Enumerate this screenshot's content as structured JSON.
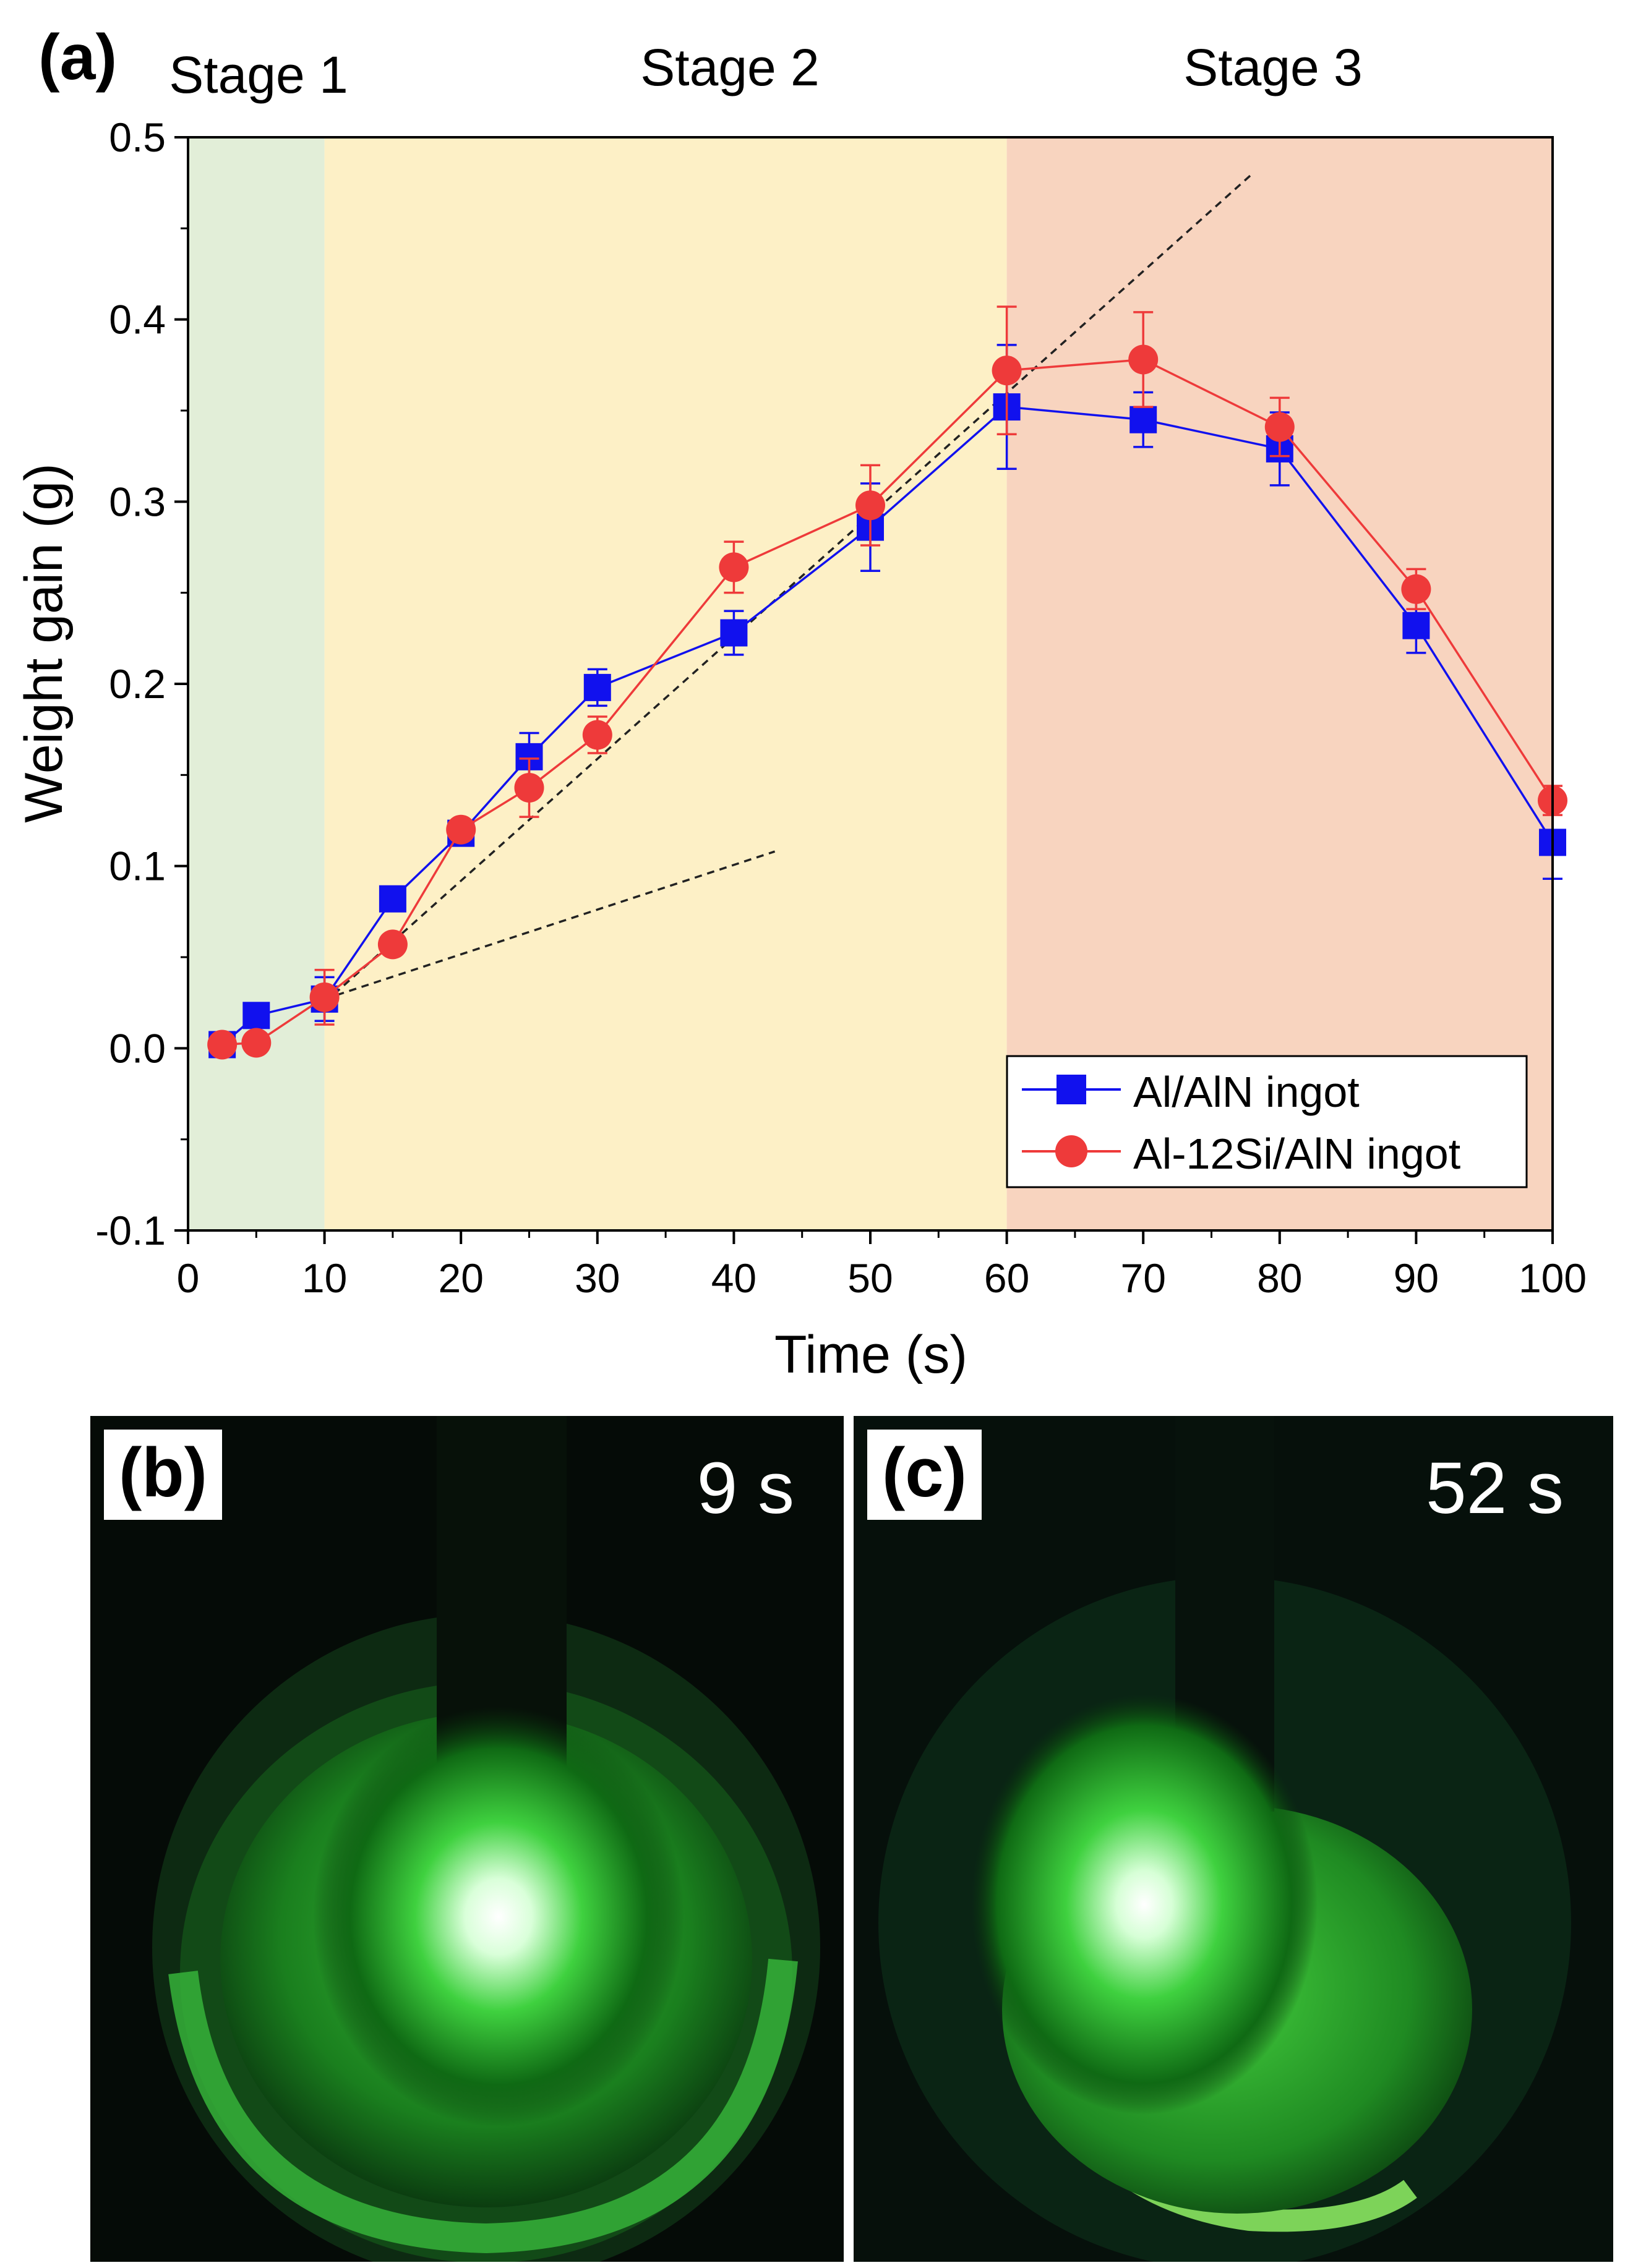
{
  "chart_data": {
    "type": "line",
    "panel_label": "(a)",
    "xlabel": "Time (s)",
    "ylabel": "Weight gain (g)",
    "xlim": [
      0,
      100
    ],
    "ylim": [
      -0.1,
      0.5
    ],
    "xticks": [
      0,
      10,
      20,
      30,
      40,
      50,
      60,
      70,
      80,
      90,
      100
    ],
    "yticks": [
      -0.1,
      0.0,
      0.1,
      0.2,
      0.3,
      0.4,
      0.5
    ],
    "ytick_labels": [
      "-0.1",
      "0.0",
      "0.1",
      "0.2",
      "0.3",
      "0.4",
      "0.5"
    ],
    "grid": false,
    "legend_position": "bottom-right",
    "stages": [
      {
        "label": "Stage 1",
        "x_start": 0,
        "x_end": 10,
        "color": "#e2eed8"
      },
      {
        "label": "Stage 2",
        "x_start": 10,
        "x_end": 60,
        "color": "#fdf0c6"
      },
      {
        "label": "Stage 3",
        "x_start": 60,
        "x_end": 100,
        "color": "#f8d4bf"
      }
    ],
    "series": [
      {
        "name": "Al/AlN ingot",
        "color": "#1111ee",
        "marker": "square",
        "x": [
          2.5,
          5,
          10,
          15,
          20,
          25,
          30,
          40,
          50,
          60,
          70,
          80,
          90,
          100
        ],
        "y": [
          0.002,
          0.018,
          0.027,
          0.082,
          0.118,
          0.16,
          0.198,
          0.228,
          0.286,
          0.352,
          0.345,
          0.329,
          0.232,
          0.113
        ],
        "err": [
          0.004,
          0.004,
          0.012,
          0.005,
          0.005,
          0.013,
          0.01,
          0.012,
          0.024,
          0.034,
          0.015,
          0.02,
          0.015,
          0.02
        ]
      },
      {
        "name": "Al-12Si/AlN ingot",
        "color": "#ee3a3a",
        "marker": "circle",
        "x": [
          2.5,
          5,
          10,
          15,
          20,
          25,
          30,
          40,
          50,
          60,
          70,
          80,
          90,
          100
        ],
        "y": [
          0.002,
          0.003,
          0.028,
          0.057,
          0.12,
          0.143,
          0.172,
          0.264,
          0.298,
          0.372,
          0.378,
          0.341,
          0.252,
          0.136
        ],
        "err": [
          0.003,
          0.003,
          0.015,
          0.005,
          0.005,
          0.016,
          0.01,
          0.014,
          0.022,
          0.035,
          0.026,
          0.016,
          0.011,
          0.008
        ]
      }
    ],
    "trend_lines": [
      {
        "x": [
          10,
          43
        ],
        "y": [
          0.027,
          0.108
        ]
      },
      {
        "x": [
          10,
          78
        ],
        "y": [
          0.025,
          0.48
        ]
      }
    ]
  },
  "photos": [
    {
      "label": "(b)",
      "time": "9 s"
    },
    {
      "label": "(c)",
      "time": "52 s"
    }
  ]
}
